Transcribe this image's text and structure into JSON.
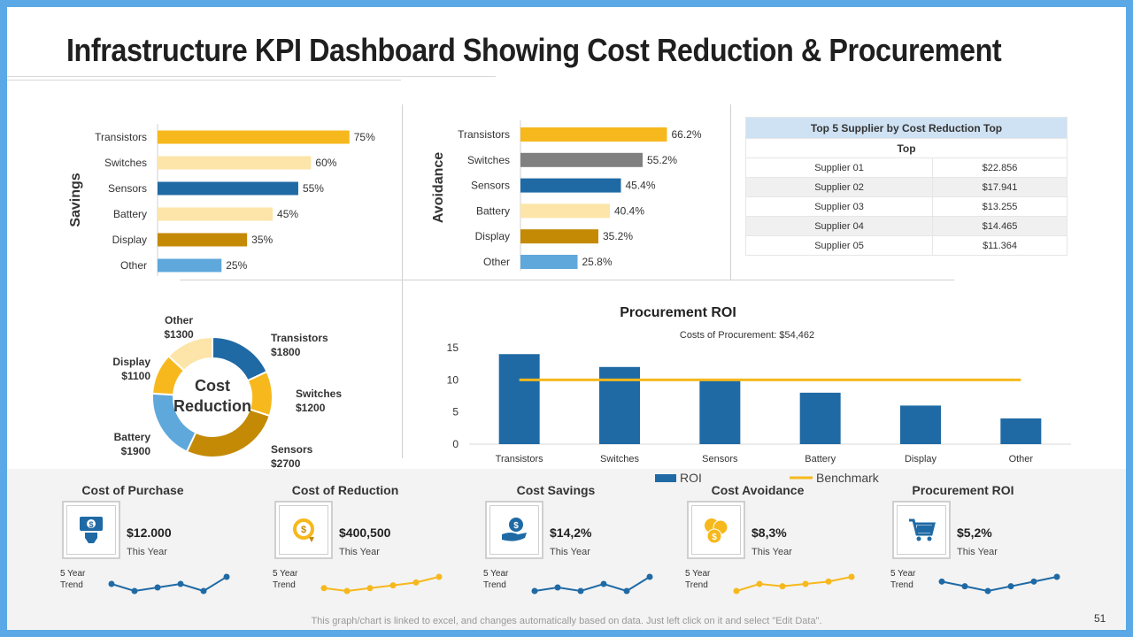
{
  "title": "Infrastructure KPI Dashboard Showing Cost Reduction & Procurement",
  "savings": {
    "axis_label": "Savings",
    "colors": [
      "#f6b81c",
      "#fde4a8",
      "#1f6aa5",
      "#fde4a8",
      "#c48a05",
      "#5fa8dc"
    ]
  },
  "avoidance": {
    "axis_label": "Avoidance",
    "colors": [
      "#f6b81c",
      "#808080",
      "#1f6aa5",
      "#fde4a8",
      "#c48a05",
      "#5fa8dc"
    ]
  },
  "suppliers": {
    "header": "Top 5 Supplier by Cost Reduction Top",
    "subheader": "Top",
    "rows": [
      {
        "name": "Supplier 01",
        "value": "$22.856"
      },
      {
        "name": "Supplier 02",
        "value": "$17.941"
      },
      {
        "name": "Supplier 03",
        "value": "$13.255"
      },
      {
        "name": "Supplier 04",
        "value": "$14.465"
      },
      {
        "name": "Supplier 05",
        "value": "$11.364"
      }
    ]
  },
  "donut": {
    "center_line1": "Cost",
    "center_line2": "Reduction",
    "colors": [
      "#1f6aa5",
      "#f6b81c",
      "#c48a05",
      "#5fa8dc",
      "#f6b81c",
      "#fde4a8"
    ]
  },
  "roi": {
    "subtitle": "Costs of Procurement: $54,462",
    "bar_color": "#1f6aa5",
    "line_color": "#f6b81c"
  },
  "chart_data": [
    {
      "type": "bar",
      "orientation": "horizontal",
      "title": "",
      "ylabel": "Savings",
      "categories": [
        "Transistors",
        "Switches",
        "Sensors",
        "Battery",
        "Display",
        "Other"
      ],
      "values": [
        75,
        60,
        55,
        45,
        35,
        25
      ],
      "labels": [
        "75%",
        "60%",
        "55%",
        "45%",
        "35%",
        "25%"
      ],
      "xlim": [
        0,
        100
      ]
    },
    {
      "type": "bar",
      "orientation": "horizontal",
      "title": "",
      "ylabel": "Avoidance",
      "categories": [
        "Transistors",
        "Switches",
        "Sensors",
        "Battery",
        "Display",
        "Other"
      ],
      "values": [
        66.2,
        55.2,
        45.4,
        40.4,
        35.2,
        25.8
      ],
      "labels": [
        "66.2%",
        "55.2%",
        "45.4%",
        "40.4%",
        "35.2%",
        "25.8%"
      ],
      "xlim": [
        0,
        100
      ]
    },
    {
      "type": "pie",
      "title": "Cost Reduction",
      "categories": [
        "Transistors",
        "Switches",
        "Sensors",
        "Battery",
        "Display",
        "Other"
      ],
      "values": [
        1800,
        1200,
        2700,
        1900,
        1100,
        1300
      ],
      "labels": [
        "$1800",
        "$1200",
        "$2700",
        "$1900",
        "$1100",
        "$1300"
      ]
    },
    {
      "type": "bar",
      "title": "Procurement ROI",
      "subtitle": "Costs of Procurement: $54,462",
      "categories": [
        "Transistors",
        "Switches",
        "Sensors",
        "Battery",
        "Display",
        "Other"
      ],
      "series": [
        {
          "name": "ROI",
          "type": "bar",
          "values": [
            14,
            12,
            10,
            8,
            6,
            4
          ]
        },
        {
          "name": "Benchmark",
          "type": "line",
          "values": [
            10,
            10,
            10,
            10,
            10,
            10
          ]
        }
      ],
      "ylim": [
        0,
        15
      ],
      "yticks": [
        0,
        5,
        10,
        15
      ],
      "legend": "bottom"
    }
  ],
  "kpis": [
    {
      "title": "Cost of Purchase",
      "value": "$12.000",
      "sub": "This Year",
      "trend_label": "5 Year Trend",
      "icon": "money-hand-icon",
      "trend": [
        3,
        1,
        2,
        3,
        1,
        5
      ],
      "trend_color": "#1f6aa5"
    },
    {
      "title": "Cost of Reduction",
      "value": "$400,500",
      "sub": "This Year",
      "trend_label": "5 Year Trend",
      "icon": "coin-down-icon",
      "trend": [
        2,
        1,
        2,
        3,
        4,
        6
      ],
      "trend_color": "#f6b81c"
    },
    {
      "title": "Cost Savings",
      "value": "$14,2%",
      "sub": "This Year",
      "trend_label": "5 Year Trend",
      "icon": "dollar-hand-icon",
      "trend": [
        2,
        3,
        2,
        4,
        2,
        6
      ],
      "trend_color": "#1f6aa5"
    },
    {
      "title": "Cost Avoidance",
      "value": "$8,3%",
      "sub": "This Year",
      "trend_label": "5 Year Trend",
      "icon": "coins-icon",
      "trend": [
        1,
        4,
        3,
        4,
        5,
        7
      ],
      "trend_color": "#f6b81c"
    },
    {
      "title": "Procurement ROI",
      "value": "$5,2%",
      "sub": "This Year",
      "trend_label": "5 Year Trend",
      "icon": "cart-icon",
      "trend": [
        4,
        3,
        2,
        3,
        4,
        5
      ],
      "trend_color": "#1f6aa5"
    }
  ],
  "footnote": "This graph/chart is linked to excel, and changes automatically based on data. Just left click on it and select \"Edit Data\".",
  "page_number": "51"
}
